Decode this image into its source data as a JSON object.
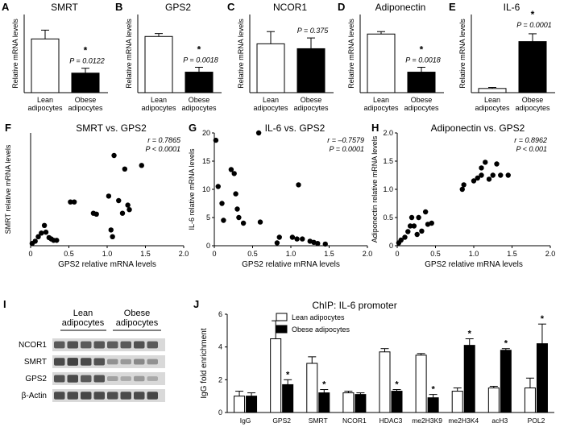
{
  "colors": {
    "black": "#000000",
    "white": "#ffffff",
    "blot_bg": "#d9d9d9",
    "band": "#3a3a3a"
  },
  "bar_panels": [
    {
      "letter": "A",
      "title": "SMRT",
      "ylabel": "Relative mRNA levels",
      "categories": [
        "Lean\nadipocytes",
        "Obese\nadipocytes"
      ],
      "values": [
        1.1,
        0.4
      ],
      "errors": [
        0.18,
        0.1
      ],
      "ylim": [
        0,
        1.6
      ],
      "pvalue": "P = 0.0122",
      "star": "*"
    },
    {
      "letter": "B",
      "title": "GPS2",
      "ylabel": "Relative mRNA levels",
      "categories": [
        "Lean\nadipocytes",
        "Obese\nadipocytes"
      ],
      "values": [
        1.15,
        0.42
      ],
      "errors": [
        0.06,
        0.1
      ],
      "ylim": [
        0,
        1.6
      ],
      "pvalue": "P = 0.0018",
      "star": "*"
    },
    {
      "letter": "C",
      "title": "NCOR1",
      "ylabel": "Relative mRNA levels",
      "categories": [
        "Lean\nadipocytes",
        "Obese\nadipocytes"
      ],
      "values": [
        1.0,
        0.9
      ],
      "errors": [
        0.25,
        0.22
      ],
      "ylim": [
        0,
        1.6
      ],
      "pvalue": "P = 0.375",
      "star": ""
    },
    {
      "letter": "D",
      "title": "Adiponectin",
      "ylabel": "Relative mRNA levels",
      "categories": [
        "Lean\nadipocytes",
        "Obese\nadipocytes"
      ],
      "values": [
        1.2,
        0.42
      ],
      "errors": [
        0.05,
        0.1
      ],
      "ylim": [
        0,
        1.6
      ],
      "pvalue": "P = 0.0018",
      "star": "*"
    },
    {
      "letter": "E",
      "title": "IL-6",
      "ylabel": "Relative mRNA levels",
      "categories": [
        "Lean\nadipocytes",
        "Obese\nadipocytes"
      ],
      "values": [
        0.8,
        9.8
      ],
      "errors": [
        0.2,
        1.5
      ],
      "ylim": [
        0,
        15
      ],
      "pvalue": "P = 0.0001",
      "star": "*"
    }
  ],
  "scatter_panels": [
    {
      "letter": "F",
      "title": "SMRT vs. GPS2",
      "ylabel": "SMRT relative mRNA levels",
      "xlabel": "GPS2 relative mRNA levels",
      "xlim": [
        0,
        2
      ],
      "ylim": [
        0,
        2.5
      ],
      "xticks": [
        "0",
        "0.5",
        "1.0",
        "1.5",
        "2.0"
      ],
      "yticks": [],
      "stat_r": "r = 0.7865",
      "stat_p": "P < 0.0001",
      "points": [
        [
          0.02,
          0.05
        ],
        [
          0.06,
          0.1
        ],
        [
          0.1,
          0.2
        ],
        [
          0.14,
          0.28
        ],
        [
          0.18,
          0.45
        ],
        [
          0.2,
          0.3
        ],
        [
          0.24,
          0.18
        ],
        [
          0.27,
          0.15
        ],
        [
          0.3,
          0.12
        ],
        [
          0.34,
          0.12
        ],
        [
          0.52,
          0.97
        ],
        [
          0.57,
          0.97
        ],
        [
          0.82,
          0.72
        ],
        [
          0.86,
          0.7
        ],
        [
          1.02,
          1.1
        ],
        [
          1.05,
          0.35
        ],
        [
          1.07,
          0.2
        ],
        [
          1.09,
          2.0
        ],
        [
          1.15,
          1.0
        ],
        [
          1.2,
          0.72
        ],
        [
          1.23,
          1.7
        ],
        [
          1.27,
          0.9
        ],
        [
          1.29,
          0.8
        ],
        [
          1.45,
          1.78
        ]
      ]
    },
    {
      "letter": "G",
      "title": "IL-6 vs. GPS2",
      "ylabel": "IL-6 relative mRNA levels",
      "xlabel": "GPS2 relative mRNA levels",
      "xlim": [
        0,
        2
      ],
      "ylim": [
        0,
        20
      ],
      "xticks": [
        "0",
        "0.5",
        "1.0",
        "1.5",
        "2.0"
      ],
      "yticks": [
        "0",
        "5",
        "10",
        "15",
        "20"
      ],
      "stat_r": "r = –0.7579",
      "stat_p": "P = 0.0001",
      "points": [
        [
          0.02,
          18.7
        ],
        [
          0.05,
          10.5
        ],
        [
          0.1,
          7.5
        ],
        [
          0.12,
          4.5
        ],
        [
          0.22,
          13.5
        ],
        [
          0.26,
          12.8
        ],
        [
          0.28,
          9.2
        ],
        [
          0.3,
          6.5
        ],
        [
          0.32,
          5.0
        ],
        [
          0.38,
          4.0
        ],
        [
          0.58,
          20.0
        ],
        [
          0.6,
          4.2
        ],
        [
          0.82,
          0.5
        ],
        [
          0.85,
          1.5
        ],
        [
          1.02,
          1.5
        ],
        [
          1.08,
          1.2
        ],
        [
          1.1,
          10.8
        ],
        [
          1.15,
          1.2
        ],
        [
          1.25,
          0.8
        ],
        [
          1.3,
          0.6
        ],
        [
          1.35,
          0.4
        ],
        [
          1.45,
          0.3
        ]
      ]
    },
    {
      "letter": "H",
      "title": "Adiponectin vs. GPS2",
      "ylabel": "Adiponectin relative mRNA levels",
      "xlabel": "GPS2 relative mRNA levels",
      "xlim": [
        0,
        2
      ],
      "ylim": [
        0,
        2
      ],
      "xticks": [
        "0",
        "0.5",
        "1.0",
        "1.5",
        "2.0"
      ],
      "yticks": [
        "0",
        "0.5",
        "1.0",
        "1.5",
        "2.0"
      ],
      "stat_r": "r = 0.8962",
      "stat_p": "P < 0.001",
      "points": [
        [
          0.02,
          0.05
        ],
        [
          0.05,
          0.1
        ],
        [
          0.1,
          0.15
        ],
        [
          0.14,
          0.25
        ],
        [
          0.17,
          0.35
        ],
        [
          0.19,
          0.5
        ],
        [
          0.22,
          0.35
        ],
        [
          0.26,
          0.2
        ],
        [
          0.28,
          0.5
        ],
        [
          0.32,
          0.26
        ],
        [
          0.37,
          0.6
        ],
        [
          0.4,
          0.38
        ],
        [
          0.45,
          0.4
        ],
        [
          0.85,
          1.0
        ],
        [
          0.87,
          1.08
        ],
        [
          1.0,
          1.15
        ],
        [
          1.05,
          1.2
        ],
        [
          1.1,
          1.25
        ],
        [
          1.1,
          1.38
        ],
        [
          1.15,
          1.48
        ],
        [
          1.2,
          1.18
        ],
        [
          1.25,
          1.25
        ],
        [
          1.3,
          1.45
        ],
        [
          1.35,
          1.25
        ],
        [
          1.45,
          1.25
        ]
      ]
    }
  ],
  "blot": {
    "letter": "I",
    "group1": "Lean\nadipocytes",
    "group2": "Obese\nadipocytes",
    "rows": [
      {
        "label": "NCOR1",
        "intensity": [
          0.8,
          0.85,
          0.8,
          0.82,
          0.78,
          0.8,
          0.85,
          0.8
        ]
      },
      {
        "label": "SMRT",
        "intensity": [
          0.9,
          0.95,
          0.9,
          0.85,
          0.45,
          0.4,
          0.5,
          0.45
        ]
      },
      {
        "label": "GPS2",
        "intensity": [
          0.85,
          0.9,
          0.8,
          0.85,
          0.35,
          0.3,
          0.4,
          0.3
        ]
      },
      {
        "label": "β-Actin",
        "intensity": [
          0.9,
          0.9,
          0.92,
          0.9,
          0.88,
          0.9,
          0.9,
          0.92
        ]
      }
    ]
  },
  "chip": {
    "letter": "J",
    "title": "ChIP: IL-6 promoter",
    "ylabel": "IgG fold enrichment",
    "ylim": [
      0,
      6
    ],
    "yticks": [
      "0",
      "2",
      "4",
      "6"
    ],
    "legend": [
      "Lean adipocytes",
      "Obese adipocytes"
    ],
    "categories": [
      "IgG",
      "GPS2",
      "SMRT",
      "NCOR1",
      "HDAC3",
      "me2H3K9",
      "me2H3K4",
      "acH3",
      "POL2"
    ],
    "lean": [
      1.0,
      4.5,
      3.0,
      1.2,
      3.7,
      3.5,
      1.3,
      1.5,
      1.5
    ],
    "lean_err": [
      0.3,
      1.1,
      0.4,
      0.1,
      0.2,
      0.1,
      0.2,
      0.1,
      0.6
    ],
    "obese": [
      1.0,
      1.7,
      1.2,
      1.1,
      1.3,
      0.9,
      4.1,
      3.8,
      4.2
    ],
    "obese_err": [
      0.2,
      0.3,
      0.2,
      0.1,
      0.1,
      0.2,
      0.4,
      0.1,
      1.2
    ],
    "stars": [
      false,
      true,
      true,
      false,
      true,
      true,
      true,
      true,
      true
    ],
    "star_on": [
      "",
      "obese",
      "obese",
      "",
      "obese",
      "obese",
      "obese",
      "obese",
      "obese"
    ]
  },
  "chart_data": [
    {
      "type": "bar",
      "title": "SMRT",
      "ylabel": "Relative mRNA levels",
      "categories": [
        "Lean adipocytes",
        "Obese adipocytes"
      ],
      "values": [
        1.1,
        0.4
      ]
    },
    {
      "type": "bar",
      "title": "GPS2",
      "ylabel": "Relative mRNA levels",
      "categories": [
        "Lean adipocytes",
        "Obese adipocytes"
      ],
      "values": [
        1.15,
        0.42
      ]
    },
    {
      "type": "bar",
      "title": "NCOR1",
      "ylabel": "Relative mRNA levels",
      "categories": [
        "Lean adipocytes",
        "Obese adipocytes"
      ],
      "values": [
        1.0,
        0.9
      ]
    },
    {
      "type": "bar",
      "title": "Adiponectin",
      "ylabel": "Relative mRNA levels",
      "categories": [
        "Lean adipocytes",
        "Obese adipocytes"
      ],
      "values": [
        1.2,
        0.42
      ]
    },
    {
      "type": "bar",
      "title": "IL-6",
      "ylabel": "Relative mRNA levels",
      "categories": [
        "Lean adipocytes",
        "Obese adipocytes"
      ],
      "values": [
        0.8,
        9.8
      ]
    },
    {
      "type": "scatter",
      "title": "SMRT vs. GPS2",
      "xlabel": "GPS2 relative mRNA levels",
      "ylabel": "SMRT relative mRNA levels"
    },
    {
      "type": "scatter",
      "title": "IL-6 vs. GPS2",
      "xlabel": "GPS2 relative mRNA levels",
      "ylabel": "IL-6 relative mRNA levels"
    },
    {
      "type": "scatter",
      "title": "Adiponectin vs. GPS2",
      "xlabel": "GPS2 relative mRNA levels",
      "ylabel": "Adiponectin relative mRNA levels"
    },
    {
      "type": "bar",
      "title": "ChIP: IL-6 promoter",
      "ylabel": "IgG fold enrichment",
      "categories": [
        "IgG",
        "GPS2",
        "SMRT",
        "NCOR1",
        "HDAC3",
        "me2H3K9",
        "me2H3K4",
        "acH3",
        "POL2"
      ],
      "series": [
        {
          "name": "Lean adipocytes",
          "values": [
            1.0,
            4.5,
            3.0,
            1.2,
            3.7,
            3.5,
            1.3,
            1.5,
            1.5
          ]
        },
        {
          "name": "Obese adipocytes",
          "values": [
            1.0,
            1.7,
            1.2,
            1.1,
            1.3,
            0.9,
            4.1,
            3.8,
            4.2
          ]
        }
      ],
      "ylim": [
        0,
        6
      ]
    }
  ]
}
